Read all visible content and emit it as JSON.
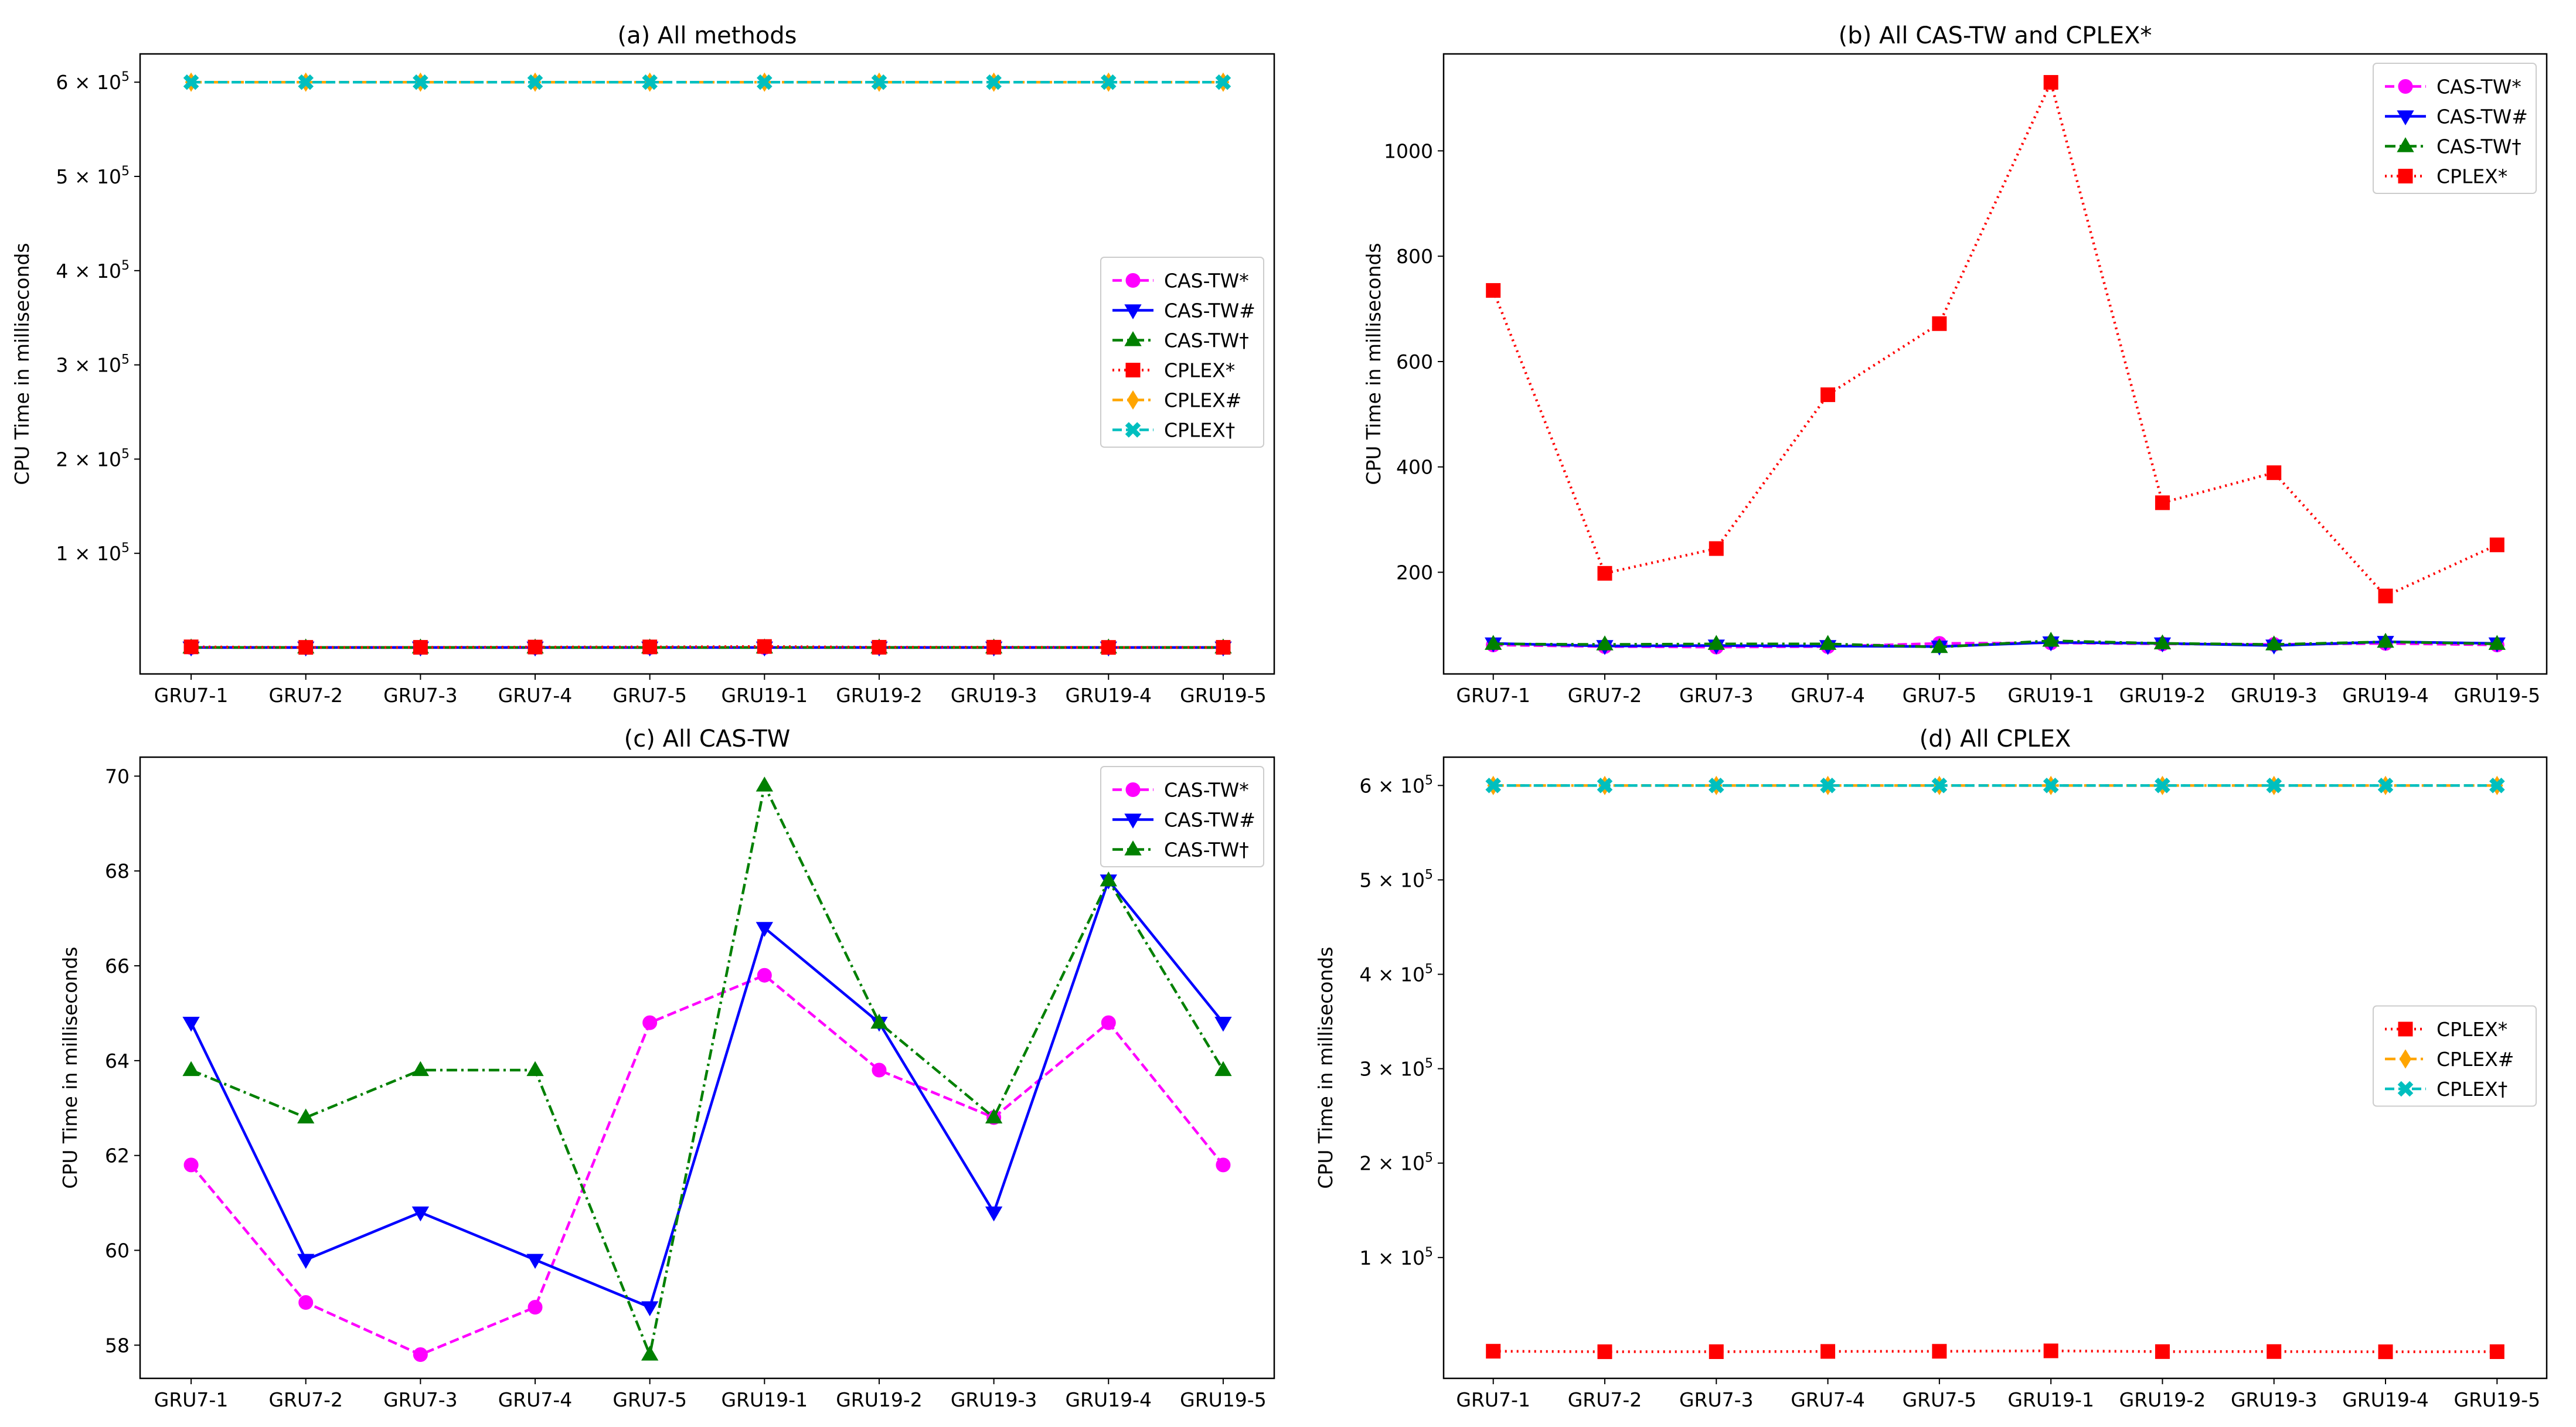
{
  "figure": {
    "categories": [
      "GRU7-1",
      "GRU7-2",
      "GRU7-3",
      "GRU7-4",
      "GRU7-5",
      "GRU19-1",
      "GRU19-2",
      "GRU19-3",
      "GRU19-4",
      "GRU19-5"
    ],
    "ylabel": "CPU Time in milliseconds"
  },
  "series_styles": {
    "CAS-TW*": {
      "color": "#ff00ff",
      "dash": "dashed",
      "marker": "circle"
    },
    "CAS-TW#": {
      "color": "#0000ff",
      "dash": "solid",
      "marker": "triangle-down"
    },
    "CAS-TW†": {
      "color": "#008000",
      "dash": "dashdot",
      "marker": "triangle-up"
    },
    "CPLEX*": {
      "color": "#ff0000",
      "dash": "dotted",
      "marker": "square"
    },
    "CPLEX#": {
      "color": "#ffa500",
      "dash": "dashdot",
      "marker": "diamond"
    },
    "CPLEX†": {
      "color": "#00bfbf",
      "dash": "dashed",
      "marker": "x-filled"
    }
  },
  "chart_data": [
    {
      "id": "a",
      "type": "line",
      "title": "(a) All methods",
      "xlabel": "",
      "ylabel": "CPU Time in milliseconds",
      "categories": [
        "GRU7-1",
        "GRU7-2",
        "GRU7-3",
        "GRU7-4",
        "GRU7-5",
        "GRU19-1",
        "GRU19-2",
        "GRU19-3",
        "GRU19-4",
        "GRU19-5"
      ],
      "ylim": [
        -28000,
        630000
      ],
      "yticks": [
        {
          "value": 100000,
          "mant": "1 × 10",
          "exp": "5"
        },
        {
          "value": 200000,
          "mant": "2 × 10",
          "exp": "5"
        },
        {
          "value": 300000,
          "mant": "3 × 10",
          "exp": "5"
        },
        {
          "value": 400000,
          "mant": "4 × 10",
          "exp": "5"
        },
        {
          "value": 500000,
          "mant": "5 × 10",
          "exp": "5"
        },
        {
          "value": 600000,
          "mant": "6 × 10",
          "exp": "5"
        }
      ],
      "legend": "center-right",
      "series": [
        {
          "name": "CAS-TW*",
          "values": [
            62,
            59,
            58,
            59,
            65,
            66,
            64,
            63,
            65,
            62
          ]
        },
        {
          "name": "CAS-TW#",
          "values": [
            65,
            60,
            61,
            60,
            59,
            67,
            65,
            61,
            68,
            65
          ]
        },
        {
          "name": "CAS-TW†",
          "values": [
            64,
            63,
            64,
            64,
            58,
            70,
            65,
            63,
            68,
            64
          ]
        },
        {
          "name": "CPLEX*",
          "values": [
            735,
            198,
            245,
            537,
            672,
            1130,
            332,
            389,
            155,
            252
          ]
        },
        {
          "name": "CPLEX#",
          "values": [
            600000,
            600000,
            600000,
            600000,
            600000,
            600000,
            600000,
            600000,
            600000,
            600000
          ]
        },
        {
          "name": "CPLEX†",
          "values": [
            600000,
            600000,
            600000,
            600000,
            600000,
            600000,
            600000,
            600000,
            600000,
            600000
          ]
        }
      ]
    },
    {
      "id": "b",
      "type": "line",
      "title": "(b) All CAS-TW and CPLEX*",
      "xlabel": "",
      "ylabel": "CPU Time in milliseconds",
      "categories": [
        "GRU7-1",
        "GRU7-2",
        "GRU7-3",
        "GRU7-4",
        "GRU7-5",
        "GRU19-1",
        "GRU19-2",
        "GRU19-3",
        "GRU19-4",
        "GRU19-5"
      ],
      "ylim": [
        7,
        1184
      ],
      "yticks": [
        {
          "value": 200,
          "label": "200"
        },
        {
          "value": 400,
          "label": "400"
        },
        {
          "value": 600,
          "label": "600"
        },
        {
          "value": 800,
          "label": "800"
        },
        {
          "value": 1000,
          "label": "1000"
        }
      ],
      "legend": "top-right",
      "series": [
        {
          "name": "CAS-TW*",
          "values": [
            62,
            59,
            58,
            59,
            65,
            66,
            64,
            63,
            65,
            62
          ]
        },
        {
          "name": "CAS-TW#",
          "values": [
            65,
            60,
            61,
            60,
            59,
            67,
            65,
            61,
            68,
            65
          ]
        },
        {
          "name": "CAS-TW†",
          "values": [
            64,
            63,
            64,
            64,
            58,
            70,
            65,
            63,
            68,
            64
          ]
        },
        {
          "name": "CPLEX*",
          "values": [
            735,
            198,
            245,
            537,
            672,
            1130,
            332,
            389,
            155,
            252
          ]
        }
      ]
    },
    {
      "id": "c",
      "type": "line",
      "title": "(c) All CAS-TW",
      "xlabel": "",
      "ylabel": "CPU Time in milliseconds",
      "categories": [
        "GRU7-1",
        "GRU7-2",
        "GRU7-3",
        "GRU7-4",
        "GRU7-5",
        "GRU19-1",
        "GRU19-2",
        "GRU19-3",
        "GRU19-4",
        "GRU19-5"
      ],
      "ylim": [
        57.3,
        70.4
      ],
      "yticks": [
        {
          "value": 58,
          "label": "58"
        },
        {
          "value": 60,
          "label": "60"
        },
        {
          "value": 62,
          "label": "62"
        },
        {
          "value": 64,
          "label": "64"
        },
        {
          "value": 66,
          "label": "66"
        },
        {
          "value": 68,
          "label": "68"
        },
        {
          "value": 70,
          "label": "70"
        }
      ],
      "legend": "top-right",
      "series": [
        {
          "name": "CAS-TW*",
          "values": [
            61.8,
            58.9,
            57.8,
            58.8,
            64.8,
            65.8,
            63.8,
            62.8,
            64.8,
            61.8
          ]
        },
        {
          "name": "CAS-TW#",
          "values": [
            64.8,
            59.8,
            60.8,
            59.8,
            58.8,
            66.8,
            64.8,
            60.8,
            67.8,
            64.8
          ]
        },
        {
          "name": "CAS-TW†",
          "values": [
            63.8,
            62.8,
            63.8,
            63.8,
            57.8,
            69.8,
            64.8,
            62.8,
            67.8,
            63.8
          ]
        }
      ]
    },
    {
      "id": "d",
      "type": "line",
      "title": "(d) All CPLEX",
      "xlabel": "",
      "ylabel": "CPU Time in milliseconds",
      "categories": [
        "GRU7-1",
        "GRU7-2",
        "GRU7-3",
        "GRU7-4",
        "GRU7-5",
        "GRU19-1",
        "GRU19-2",
        "GRU19-3",
        "GRU19-4",
        "GRU19-5"
      ],
      "ylim": [
        -28000,
        630000
      ],
      "yticks": [
        {
          "value": 100000,
          "mant": "1 × 10",
          "exp": "5"
        },
        {
          "value": 200000,
          "mant": "2 × 10",
          "exp": "5"
        },
        {
          "value": 300000,
          "mant": "3 × 10",
          "exp": "5"
        },
        {
          "value": 400000,
          "mant": "4 × 10",
          "exp": "5"
        },
        {
          "value": 500000,
          "mant": "5 × 10",
          "exp": "5"
        },
        {
          "value": 600000,
          "mant": "6 × 10",
          "exp": "5"
        }
      ],
      "legend": "center-right",
      "series": [
        {
          "name": "CPLEX*",
          "values": [
            735,
            198,
            245,
            537,
            672,
            1130,
            332,
            389,
            155,
            252
          ]
        },
        {
          "name": "CPLEX#",
          "values": [
            600000,
            600000,
            600000,
            600000,
            600000,
            600000,
            600000,
            600000,
            600000,
            600000
          ]
        },
        {
          "name": "CPLEX†",
          "values": [
            600000,
            600000,
            600000,
            600000,
            600000,
            600000,
            600000,
            600000,
            600000,
            600000
          ]
        }
      ]
    }
  ]
}
